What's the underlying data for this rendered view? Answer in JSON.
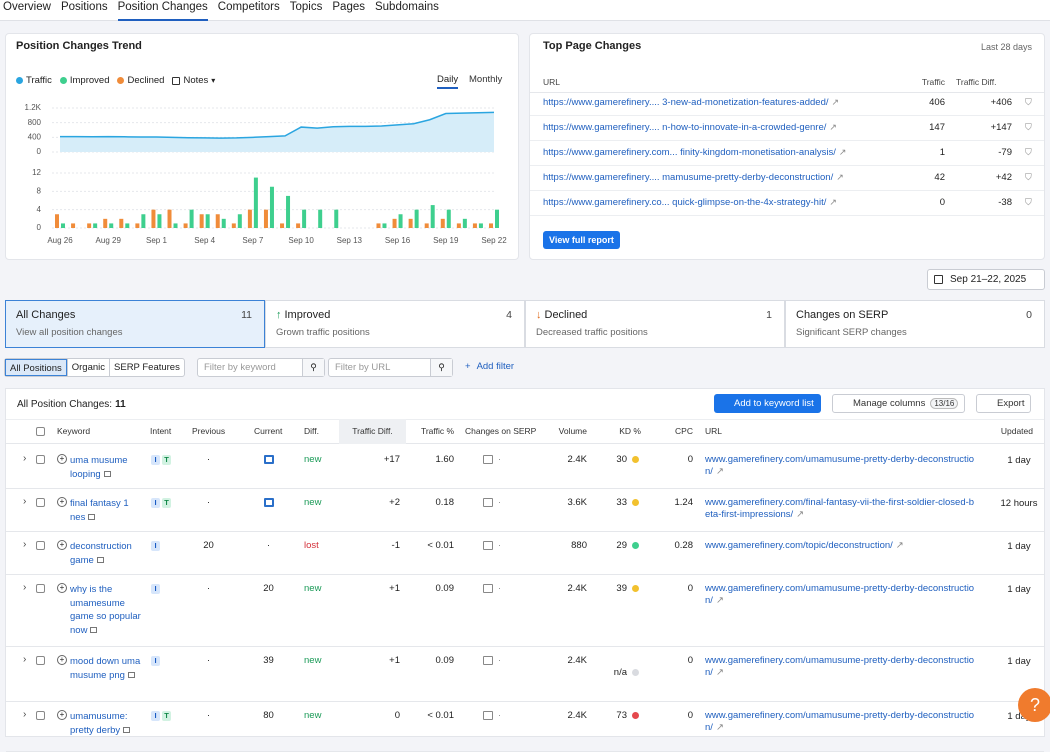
{
  "nav": {
    "tabs": [
      "Overview",
      "Positions",
      "Position Changes",
      "Competitors",
      "Topics",
      "Pages",
      "Subdomains"
    ]
  },
  "trend": {
    "title": "Position Changes Trend",
    "notes": "Notes",
    "toggles": [
      "Daily",
      "Monthly"
    ]
  },
  "chart_data": [
    {
      "type": "area",
      "series": [
        {
          "name": "Traffic",
          "color": "#2aa5e0",
          "values": [
            420,
            420,
            415,
            420,
            415,
            410,
            410,
            400,
            390,
            385,
            380,
            385,
            400,
            420,
            440,
            680,
            650,
            690,
            700,
            700,
            710,
            740,
            770,
            880,
            1050,
            1060,
            1070,
            1080
          ]
        }
      ],
      "ylim": [
        0,
        1200
      ],
      "yticks": [
        0,
        400,
        800,
        {
          "value": 1200,
          "label": "1.2K"
        }
      ],
      "grid": true
    },
    {
      "type": "bar",
      "categories": [
        "Aug 26",
        null,
        null,
        "Aug 29",
        null,
        null,
        "Sep 1",
        null,
        null,
        "Sep 4",
        null,
        null,
        "Sep 7",
        null,
        null,
        "Sep 10",
        null,
        null,
        "Sep 13",
        null,
        null,
        "Sep 16",
        null,
        null,
        "Sep 19",
        null,
        null,
        "Sep 22"
      ],
      "series": [
        {
          "name": "Improved",
          "color": "#3ecf8e",
          "values": [
            1,
            0,
            1,
            1,
            1,
            3,
            3,
            1,
            4,
            3,
            2,
            3,
            11,
            9,
            7,
            4,
            4,
            4,
            0,
            0,
            1,
            3,
            4,
            5,
            4,
            2,
            1,
            4
          ]
        },
        {
          "name": "Declined",
          "color": "#f08c3a",
          "values": [
            3,
            1,
            1,
            2,
            2,
            1,
            4,
            4,
            1,
            3,
            3,
            1,
            4,
            4,
            1,
            1,
            0,
            0,
            0,
            0,
            1,
            2,
            2,
            1,
            2,
            1,
            1,
            1
          ]
        }
      ],
      "ylim": [
        0,
        12
      ],
      "yticks": [
        0,
        4,
        8,
        12
      ],
      "grid": true
    }
  ],
  "top_pages": {
    "title": "Top Page Changes",
    "period": "Last 28 days",
    "columns": [
      "URL",
      "Traffic",
      "Traffic Diff."
    ],
    "rows": [
      {
        "url": "https://www.gamerefinery.... 3-new-ad-monetization-features-added/",
        "traffic": "406",
        "diff": "+406"
      },
      {
        "url": "https://www.gamerefinery.... n-how-to-innovate-in-a-crowded-genre/",
        "traffic": "147",
        "diff": "+147"
      },
      {
        "url": "https://www.gamerefinery.com... finity-kingdom-monetisation-analysis/",
        "traffic": "1",
        "diff": "-79"
      },
      {
        "url": "https://www.gamerefinery.... mamusume-pretty-derby-deconstruction/",
        "traffic": "42",
        "diff": "+42"
      },
      {
        "url": "https://www.gamerefinery.co... quick-glimpse-on-the-4x-strategy-hit/",
        "traffic": "0",
        "diff": "-38"
      }
    ],
    "button": "View full report"
  },
  "date_range": "Sep 21–22, 2025",
  "summary_cards": [
    {
      "title": "All Changes",
      "count": "11",
      "subtitle": "View all position changes"
    },
    {
      "title": "Improved",
      "count": "4",
      "subtitle": "Grown traffic positions"
    },
    {
      "title": "Declined",
      "count": "1",
      "subtitle": "Decreased traffic positions"
    },
    {
      "title": "Changes on SERP",
      "count": "0",
      "subtitle": "Significant SERP changes"
    }
  ],
  "filters": {
    "segments": [
      "All Positions",
      "Organic",
      "SERP Features"
    ],
    "keyword_placeholder": "Filter by keyword",
    "url_placeholder": "Filter by URL",
    "add": "Add filter"
  },
  "table": {
    "label": "All Position Changes:",
    "count": "11",
    "actions": {
      "add": "Add to keyword list",
      "manage": "Manage columns",
      "manage_count": "13/16",
      "export": "Export"
    },
    "columns": [
      "Keyword",
      "Intent",
      "Previous",
      "Current",
      "Diff.",
      "Traffic Diff.",
      "Traffic %",
      "Changes on SERP",
      "Volume",
      "KD %",
      "CPC",
      "URL",
      "Updated"
    ],
    "rows": [
      {
        "keyword": "uma musume looping",
        "intent": [
          "I",
          "T"
        ],
        "previous": "·",
        "diff": "new",
        "traffic_diff": "+17",
        "traffic_pct": "1.60",
        "volume": "2.4K",
        "kd": "30",
        "kd_color": "#f2c12e",
        "cpc": "0",
        "url": "www.gamerefinery.com/umamusume-pretty-derby-deconstruction/",
        "updated": "1 day"
      },
      {
        "keyword": "final fantasy 1 nes",
        "intent": [
          "I",
          "T"
        ],
        "previous": "·",
        "diff": "new",
        "traffic_diff": "+2",
        "traffic_pct": "0.18",
        "volume": "3.6K",
        "kd": "33",
        "kd_color": "#f2c12e",
        "cpc": "1.24",
        "url": "www.gamerefinery.com/final-fantasy-vii-the-first-soldier-closed-beta-first-impressions/",
        "updated": "12 hours"
      },
      {
        "keyword": "deconstruction game",
        "intent": [
          "I"
        ],
        "previous": "20",
        "current": "·",
        "diff": "lost",
        "traffic_diff": "-1",
        "traffic_pct": "< 0.01",
        "volume": "880",
        "kd": "29",
        "kd_color": "#3ecf8e",
        "cpc": "0.28",
        "url": "www.gamerefinery.com/topic/deconstruction/",
        "updated": "1 day"
      },
      {
        "keyword": "why is the umamesume game so popular now",
        "intent": [
          "I"
        ],
        "previous": "·",
        "current": "20",
        "diff": "new",
        "traffic_diff": "+1",
        "traffic_pct": "0.09",
        "volume": "2.4K",
        "kd": "39",
        "kd_color": "#f2c12e",
        "cpc": "0",
        "url": "www.gamerefinery.com/umamusume-pretty-derby-deconstruction/",
        "updated": "1 day"
      },
      {
        "keyword": "mood down uma musume png",
        "intent": [
          "I"
        ],
        "previous": "·",
        "current": "39",
        "diff": "new",
        "traffic_diff": "+1",
        "traffic_pct": "0.09",
        "volume": "2.4K",
        "kd": "n/a",
        "kd_color": "#d9dbe0",
        "cpc": "0",
        "url": "www.gamerefinery.com/umamusume-pretty-derby-deconstruction/",
        "updated": "1 day"
      },
      {
        "keyword": "umamusume: pretty derby",
        "intent": [
          "I",
          "T"
        ],
        "previous": "·",
        "current": "80",
        "diff": "new",
        "traffic_diff": "0",
        "traffic_pct": "< 0.01",
        "volume": "2.4K",
        "kd": "73",
        "kd_color": "#e5484d",
        "cpc": "0",
        "url": "www.gamerefinery.com/umamusume-pretty-derby-deconstruction/",
        "updated": "1 day"
      }
    ]
  },
  "help": "?"
}
